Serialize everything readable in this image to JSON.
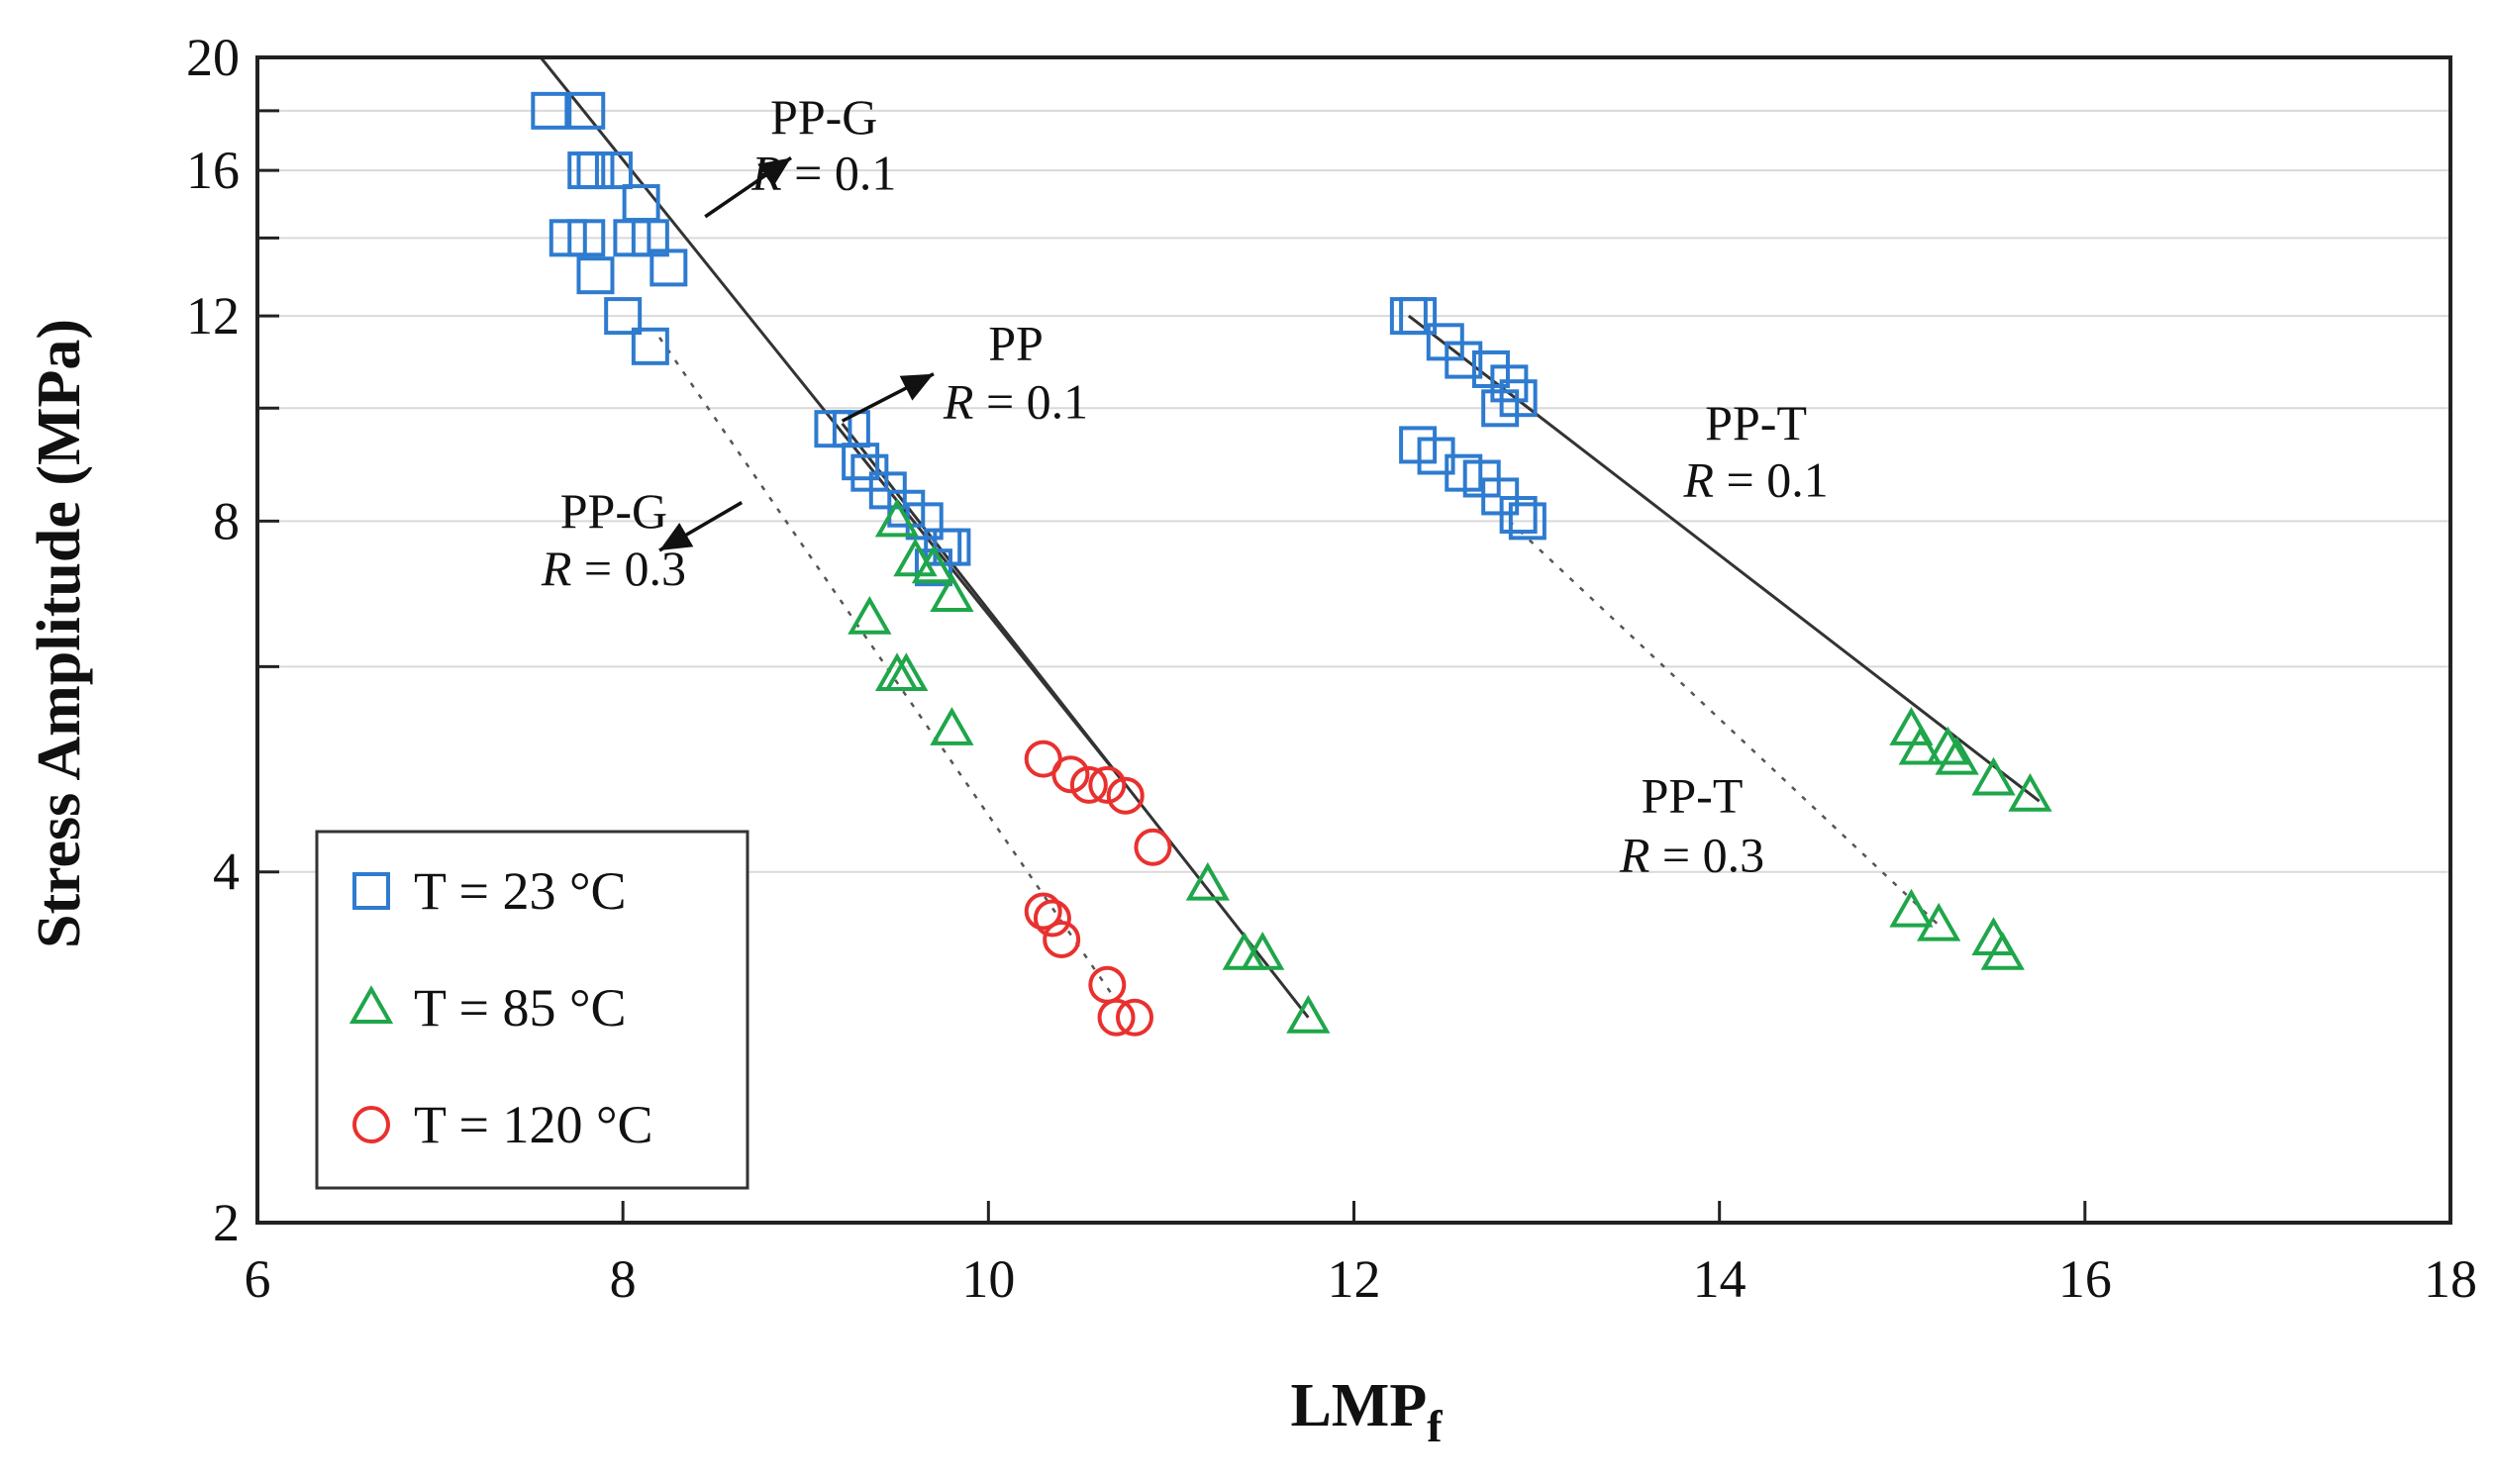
{
  "chart_data": {
    "type": "scatter",
    "title": "",
    "xlabel": "LMP",
    "xlabel_sub": "f",
    "ylabel": "Stress  Amplitude (MPa)",
    "xlim": [
      6,
      18
    ],
    "ylim": [
      2,
      20
    ],
    "yscale": "log",
    "xticks": [
      {
        "value": 6,
        "label": "6"
      },
      {
        "value": 8,
        "label": "8"
      },
      {
        "value": 10,
        "label": "10"
      },
      {
        "value": 12,
        "label": "12"
      },
      {
        "value": 14,
        "label": "14"
      },
      {
        "value": 16,
        "label": "16"
      },
      {
        "value": 18,
        "label": "18"
      }
    ],
    "yticks": [
      {
        "value": 2,
        "label": "2"
      },
      {
        "value": 4,
        "label": "4"
      },
      {
        "value": 8,
        "label": "8"
      },
      {
        "value": 12,
        "label": "12"
      },
      {
        "value": 16,
        "label": "16"
      },
      {
        "value": 20,
        "label": "20"
      }
    ],
    "ygrid": [
      2,
      4,
      6,
      8,
      10,
      12,
      14,
      16,
      18,
      20
    ],
    "legend": [
      {
        "marker": "square",
        "color": "#2e7bcf",
        "label": "T = 23 °C"
      },
      {
        "marker": "triangle",
        "color": "#1fa64a",
        "label": "T = 85 °C"
      },
      {
        "marker": "circle",
        "color": "#e8312f",
        "label": "T = 120 °C"
      }
    ],
    "legend_position": "bottom-left",
    "series": [
      {
        "name": "T = 23 °C",
        "marker": "square",
        "color": "#2e7bcf",
        "points": [
          [
            7.6,
            18
          ],
          [
            7.8,
            18
          ],
          [
            7.8,
            16
          ],
          [
            7.85,
            16
          ],
          [
            7.95,
            16
          ],
          [
            8.1,
            15
          ],
          [
            8.15,
            14
          ],
          [
            8.05,
            14
          ],
          [
            8.25,
            13.2
          ],
          [
            7.7,
            14
          ],
          [
            7.8,
            14
          ],
          [
            7.85,
            13
          ],
          [
            8.0,
            12
          ],
          [
            8.15,
            11.3
          ],
          [
            9.15,
            9.6
          ],
          [
            9.25,
            9.6
          ],
          [
            9.3,
            9
          ],
          [
            9.35,
            8.8
          ],
          [
            9.45,
            8.5
          ],
          [
            9.55,
            8.2
          ],
          [
            9.65,
            8
          ],
          [
            9.75,
            7.6
          ],
          [
            9.8,
            7.6
          ],
          [
            9.7,
            7.3
          ],
          [
            12.3,
            12
          ],
          [
            12.35,
            12
          ],
          [
            12.5,
            11.4
          ],
          [
            12.6,
            11
          ],
          [
            12.75,
            10.8
          ],
          [
            12.85,
            10.5
          ],
          [
            12.9,
            10.2
          ],
          [
            12.8,
            10
          ],
          [
            12.35,
            9.3
          ],
          [
            12.45,
            9.1
          ],
          [
            12.6,
            8.8
          ],
          [
            12.7,
            8.7
          ],
          [
            12.8,
            8.4
          ],
          [
            12.9,
            8.1
          ],
          [
            12.95,
            8
          ]
        ]
      },
      {
        "name": "T = 85 °C",
        "marker": "triangle",
        "color": "#1fa64a",
        "points": [
          [
            9.5,
            8
          ],
          [
            9.6,
            7.4
          ],
          [
            9.7,
            7.3
          ],
          [
            9.8,
            6.9
          ],
          [
            9.35,
            6.6
          ],
          [
            9.5,
            5.9
          ],
          [
            9.55,
            5.9
          ],
          [
            9.8,
            5.3
          ],
          [
            11.2,
            3.9
          ],
          [
            11.4,
            3.4
          ],
          [
            11.5,
            3.4
          ],
          [
            11.75,
            3
          ],
          [
            15.05,
            5.3
          ],
          [
            15.1,
            5.1
          ],
          [
            15.25,
            5.1
          ],
          [
            15.3,
            5
          ],
          [
            15.5,
            4.8
          ],
          [
            15.7,
            4.65
          ],
          [
            15.05,
            3.7
          ],
          [
            15.2,
            3.6
          ],
          [
            15.5,
            3.5
          ],
          [
            15.55,
            3.4
          ]
        ]
      },
      {
        "name": "T = 120 °C",
        "marker": "circle",
        "color": "#e8312f",
        "points": [
          [
            10.3,
            5
          ],
          [
            10.45,
            4.85
          ],
          [
            10.55,
            4.75
          ],
          [
            10.65,
            4.75
          ],
          [
            10.75,
            4.65
          ],
          [
            10.9,
            4.2
          ],
          [
            10.3,
            3.7
          ],
          [
            10.35,
            3.65
          ],
          [
            10.4,
            3.5
          ],
          [
            10.65,
            3.2
          ],
          [
            10.7,
            3
          ],
          [
            10.8,
            3
          ]
        ]
      }
    ],
    "fit_lines": [
      {
        "name": "PP-G R = 0.1",
        "style": "solid",
        "from": [
          7.55,
          20.0
        ],
        "to": [
          10.75,
          4.75
        ]
      },
      {
        "name": "PP R = 0.1",
        "style": "solid",
        "from": [
          9.2,
          9.7
        ],
        "to": [
          11.75,
          3.0
        ]
      },
      {
        "name": "PP-G R = 0.3",
        "style": "dashed",
        "from": [
          8.2,
          11.5
        ],
        "to": [
          10.7,
          3.1
        ]
      },
      {
        "name": "PP-T R = 0.1",
        "style": "solid",
        "from": [
          12.3,
          12.0
        ],
        "to": [
          15.75,
          4.6
        ]
      },
      {
        "name": "PP-T R = 0.3",
        "style": "dashed",
        "from": [
          12.85,
          8.0
        ],
        "to": [
          15.2,
          3.6
        ]
      }
    ],
    "annotations": [
      {
        "name": "pp-g-r01",
        "line1": "PP-G",
        "r_var": "R",
        "r_eq": " = 0.1",
        "x": 9.1,
        "y": 17.2,
        "r_y": 15.4,
        "arrow_from": [
          8.45,
          14.6
        ],
        "arrow_to": [
          8.92,
          16.4
        ]
      },
      {
        "name": "pp-r01",
        "line1": "PP",
        "r_var": "R",
        "r_eq": " = 0.1",
        "x": 10.15,
        "y": 11.0,
        "r_y": 9.8,
        "arrow_from": [
          9.2,
          9.75
        ],
        "arrow_to": [
          9.7,
          10.7
        ]
      },
      {
        "name": "pp-g-r03",
        "line1": "PP-G",
        "r_var": "R",
        "r_eq": " = 0.3",
        "x": 7.95,
        "y": 7.9,
        "r_y": 7.05,
        "arrow_from": [
          8.65,
          8.3
        ],
        "arrow_to": [
          8.2,
          7.55
        ]
      },
      {
        "name": "pp-t-r01",
        "line1": "PP-T",
        "r_var": "R",
        "r_eq": " = 0.1",
        "x": 14.2,
        "y": 9.4,
        "r_y": 8.4,
        "arrow_from": null,
        "arrow_to": null
      },
      {
        "name": "pp-t-r03",
        "line1": "PP-T",
        "r_var": "R",
        "r_eq": " = 0.3",
        "x": 13.85,
        "y": 4.5,
        "r_y": 4.0,
        "arrow_from": null,
        "arrow_to": null
      }
    ]
  }
}
